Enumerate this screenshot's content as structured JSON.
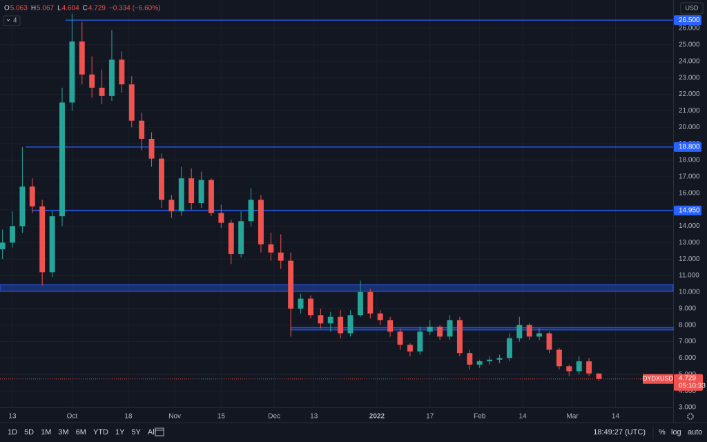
{
  "chart_data": {
    "type": "candlestick",
    "legend": {
      "items": [
        {
          "label": "O",
          "value": 5.063
        },
        {
          "label": "H",
          "value": 5.067
        },
        {
          "label": "L",
          "value": 4.604
        },
        {
          "label": "C",
          "value": 4.729
        }
      ],
      "change": "−0.334 (−6.60%)",
      "indicators": "4"
    },
    "currency": "USD",
    "symbol": "DYDXUSD",
    "last_price": 4.729,
    "countdown": "05:10:33",
    "x": [
      -3,
      0,
      3,
      6,
      9,
      12,
      15,
      18,
      21,
      24,
      27,
      30,
      33,
      36,
      39,
      42,
      45,
      48,
      51,
      54,
      57,
      60,
      63,
      66,
      69,
      72,
      75,
      78,
      81,
      84,
      87,
      90,
      93,
      96,
      99,
      102,
      105,
      108,
      111,
      114,
      117,
      120,
      123,
      126,
      129,
      132,
      135,
      138,
      141,
      144,
      147,
      150,
      153,
      156,
      159,
      162,
      165,
      168,
      171,
      174,
      177
    ],
    "open": [
      12.6,
      13.0,
      14.0,
      16.4,
      15.2,
      11.2,
      14.6,
      21.5,
      25.2,
      23.2,
      22.4,
      21.9,
      24.1,
      22.6,
      20.4,
      19.3,
      18.1,
      15.6,
      14.9,
      16.9,
      15.4,
      16.8,
      14.8,
      14.2,
      12.3,
      14.3,
      15.6,
      12.9,
      12.4,
      11.9,
      9.0,
      9.6,
      8.6,
      8.1,
      8.5,
      7.5,
      8.6,
      10.0,
      8.7,
      8.3,
      7.6,
      6.8,
      6.4,
      7.6,
      7.9,
      7.3,
      8.3,
      6.3,
      5.6,
      5.8,
      5.9,
      6.0,
      7.2,
      8.0,
      7.3,
      7.5,
      6.5,
      5.5,
      5.2,
      5.8,
      5.063
    ],
    "high": [
      13.8,
      14.9,
      18.8,
      16.9,
      15.6,
      14.9,
      22.4,
      26.9,
      26.4,
      24.3,
      23.5,
      25.9,
      24.6,
      23.1,
      20.9,
      19.7,
      18.4,
      15.9,
      17.6,
      17.5,
      17.3,
      16.9,
      15.3,
      14.4,
      14.9,
      16.3,
      15.9,
      13.6,
      13.5,
      12.4,
      9.9,
      9.8,
      9.0,
      8.8,
      8.9,
      8.9,
      10.7,
      10.2,
      8.9,
      8.5,
      7.8,
      6.9,
      7.9,
      8.3,
      8.0,
      8.6,
      8.5,
      6.5,
      5.9,
      6.1,
      6.2,
      7.5,
      8.5,
      8.1,
      7.8,
      7.6,
      6.6,
      5.6,
      6.1,
      6.0,
      5.067
    ],
    "low": [
      12.0,
      12.7,
      13.6,
      14.8,
      10.4,
      10.9,
      14.0,
      21.0,
      22.6,
      21.8,
      21.4,
      21.6,
      22.1,
      20.0,
      18.6,
      17.6,
      15.1,
      14.5,
      14.6,
      15.0,
      15.1,
      14.6,
      13.9,
      11.7,
      12.1,
      14.0,
      12.4,
      11.9,
      11.4,
      7.3,
      8.7,
      8.4,
      7.8,
      7.6,
      7.2,
      7.3,
      8.5,
      8.4,
      8.0,
      7.3,
      6.5,
      6.1,
      6.2,
      7.4,
      7.1,
      7.1,
      6.1,
      5.3,
      5.4,
      5.6,
      5.7,
      5.8,
      7.0,
      7.1,
      7.1,
      6.3,
      5.3,
      4.9,
      5.0,
      4.9,
      4.604
    ],
    "close": [
      13.0,
      14.0,
      16.4,
      15.2,
      11.2,
      14.6,
      21.5,
      25.2,
      23.2,
      22.4,
      21.9,
      24.1,
      22.6,
      20.4,
      19.3,
      18.1,
      15.6,
      14.9,
      16.9,
      15.4,
      16.8,
      14.8,
      14.2,
      12.3,
      14.3,
      15.6,
      12.9,
      12.4,
      11.9,
      9.0,
      9.6,
      8.6,
      8.1,
      8.5,
      7.5,
      8.6,
      10.0,
      8.7,
      8.3,
      7.6,
      6.8,
      6.4,
      7.6,
      7.9,
      7.3,
      8.3,
      6.3,
      5.6,
      5.8,
      5.9,
      6.0,
      7.2,
      8.0,
      7.3,
      7.5,
      6.5,
      5.5,
      5.2,
      5.8,
      5.063,
      4.729
    ],
    "up_color": "#26a69a",
    "down_color": "#ef5350",
    "levels": [
      {
        "value": 26.5,
        "label": "26.500",
        "start": 16
      },
      {
        "value": 18.8,
        "label": "18.800",
        "start": 4
      },
      {
        "value": 14.95,
        "label": "14.950",
        "start": 6
      }
    ],
    "zones": [
      {
        "from": 10.05,
        "to": 10.45
      },
      {
        "from": 7.7,
        "to": 7.85,
        "start": 84
      }
    ],
    "level_color": "#2962ff",
    "xlim": [
      -3.75,
      199.4
    ],
    "ylim": [
      3,
      27.72
    ],
    "xticks": [
      {
        "value": 0,
        "label": "13"
      },
      {
        "value": 18,
        "label": "Oct"
      },
      {
        "value": 35,
        "label": "18"
      },
      {
        "value": 49,
        "label": "Nov"
      },
      {
        "value": 63,
        "label": "15"
      },
      {
        "value": 79,
        "label": "Dec"
      },
      {
        "value": 91,
        "label": "13"
      },
      {
        "value": 110,
        "label": "2022"
      },
      {
        "value": 126,
        "label": "17"
      },
      {
        "value": 141,
        "label": "Feb"
      },
      {
        "value": 154,
        "label": "14"
      },
      {
        "value": 169,
        "label": "Mar"
      },
      {
        "value": 182,
        "label": "14"
      }
    ],
    "yticks": [
      {
        "value": 3,
        "label": "3.000"
      },
      {
        "value": 4,
        "label": "4.000"
      },
      {
        "value": 5,
        "label": "5.000"
      },
      {
        "value": 6,
        "label": "6.000"
      },
      {
        "value": 7,
        "label": "7.000"
      },
      {
        "value": 8,
        "label": "8.000"
      },
      {
        "value": 9,
        "label": "9.000"
      },
      {
        "value": 10,
        "label": "10.000"
      },
      {
        "value": 11,
        "label": "11.000"
      },
      {
        "value": 12,
        "label": "12.000"
      },
      {
        "value": 13,
        "label": "13.000"
      },
      {
        "value": 14,
        "label": "14.000"
      },
      {
        "value": 15,
        "label": "15.000"
      },
      {
        "value": 16,
        "label": "16.000"
      },
      {
        "value": 17,
        "label": "17.000"
      },
      {
        "value": 18,
        "label": "18.000"
      },
      {
        "value": 19,
        "label": "19.000"
      },
      {
        "value": 20,
        "label": "20.000"
      },
      {
        "value": 21,
        "label": "21.000"
      },
      {
        "value": 22,
        "label": "22.000"
      },
      {
        "value": 23,
        "label": "23.000"
      },
      {
        "value": 24,
        "label": "24.000"
      },
      {
        "value": 25,
        "label": "25.000"
      },
      {
        "value": 26,
        "label": "26.000"
      }
    ],
    "grid": true
  },
  "toolbar": {
    "ranges": [
      "1D",
      "5D",
      "1M",
      "3M",
      "6M",
      "YTD",
      "1Y",
      "5Y",
      "All"
    ],
    "clock": "18:49:27 (UTC)",
    "options": [
      "%",
      "log",
      "auto"
    ]
  }
}
